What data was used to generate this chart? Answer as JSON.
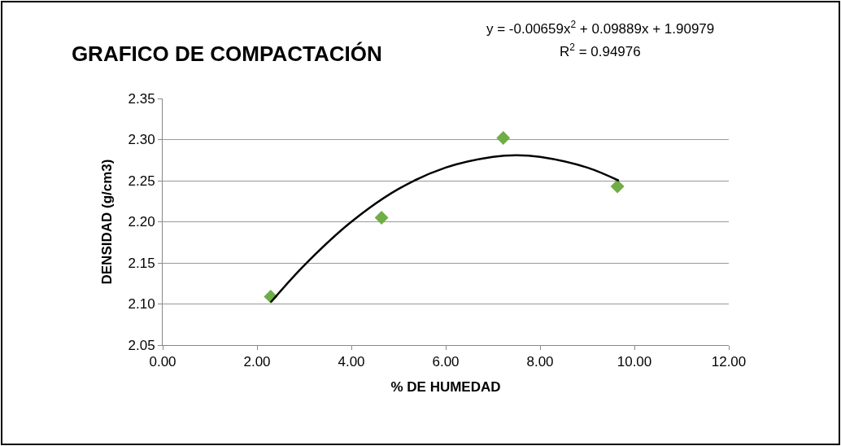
{
  "chart_data": {
    "type": "scatter",
    "title": "GRAFICO DE COMPACTACIÓN",
    "xlabel": "% DE HUMEDAD",
    "ylabel": "DENSIDAD (g/cm3)",
    "annotations": [
      "y = -0.00659x$^{2}$ + 0.09889x + 1.90979",
      "R$^{2}$ = 0.94976"
    ],
    "series": [
      {
        "color": "#70ad47",
        "marker": "diamond",
        "x": [
          2.29,
          4.64,
          7.22,
          9.64
        ],
        "values": [
          2.109,
          2.205,
          2.302,
          2.243
        ]
      },
      {
        "type": "line",
        "color": "#000000",
        "marker": "none",
        "x": [
          2.29,
          3,
          4,
          5,
          6,
          7,
          7.5,
          8,
          9,
          9.67
        ],
        "values": [
          2.102,
          2.147,
          2.2,
          2.24,
          2.266,
          2.279,
          2.281,
          2.279,
          2.266,
          2.25
        ]
      }
    ],
    "xlim": [
      0,
      12
    ],
    "xticks": [
      {
        "value": 0,
        "label": "0.00"
      },
      {
        "value": 2,
        "label": "2.00"
      },
      {
        "value": 4,
        "label": "4.00"
      },
      {
        "value": 6,
        "label": "6.00"
      },
      {
        "value": 8,
        "label": "8.00"
      },
      {
        "value": 10,
        "label": "10.00"
      },
      {
        "value": 12,
        "label": "12.00"
      }
    ],
    "ylim": [
      2.05,
      2.35
    ],
    "yticks": [
      {
        "value": 2.05,
        "label": "2.05"
      },
      {
        "value": 2.1,
        "label": "2.10"
      },
      {
        "value": 2.15,
        "label": "2.15"
      },
      {
        "value": 2.2,
        "label": "2.20"
      },
      {
        "value": 2.25,
        "label": "2.25"
      },
      {
        "value": 2.3,
        "label": "2.30"
      },
      {
        "value": 2.35,
        "label": "2.35"
      }
    ],
    "grid": "y"
  }
}
